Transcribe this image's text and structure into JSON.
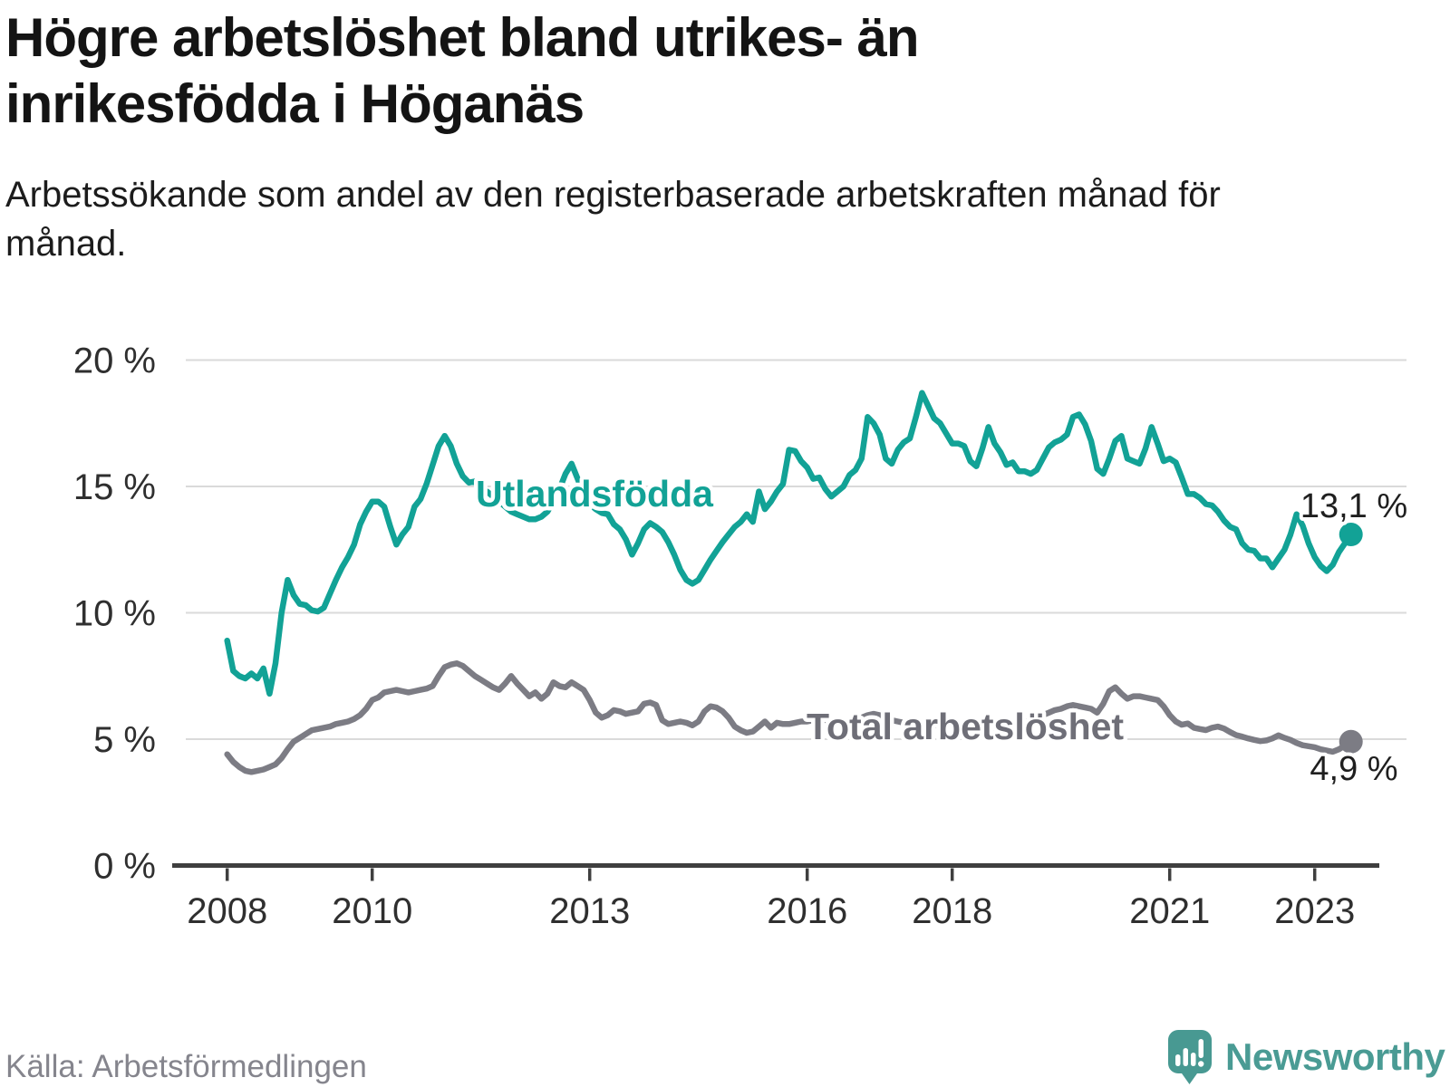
{
  "header": {
    "title": "Högre arbetslöshet bland utrikes- än inrikesfödda i Höganäs",
    "subtitle": "Arbetssökande som andel av den registerbaserade arbetskraften månad för månad."
  },
  "footer": {
    "source": "Källa: Arbetsförmedlingen",
    "brand": "Newsworthy",
    "brand_color": "#4a9b94",
    "logo_color": "#489992"
  },
  "chart_data": {
    "type": "line",
    "title": "",
    "xlabel": "",
    "ylabel": "",
    "x_unit": "month",
    "x_range": [
      "2008-01",
      "2023-07"
    ],
    "x_tick_years": [
      2008,
      2010,
      2013,
      2016,
      2018,
      2021,
      2023
    ],
    "y_tick_labels": [
      "0 %",
      "5 %",
      "10 %",
      "15 %",
      "20 %"
    ],
    "y_tick_values": [
      0,
      5,
      10,
      15,
      20
    ],
    "ylim": [
      0,
      20
    ],
    "grid": "horizontal",
    "legend_position": "inline-labels",
    "axis_color": "#3f3f3f",
    "grid_color": "#dadada",
    "tick_label_color": "#2f2f2f",
    "value_label_color": "#1f1f1f",
    "series": [
      {
        "name": "Utlandsfödda",
        "color": "#12a296",
        "end_label": "13,1 %",
        "end_value": 13.1,
        "values": [
          8.9,
          7.7,
          7.5,
          7.4,
          7.6,
          7.4,
          7.8,
          6.8,
          8.0,
          10.0,
          11.3,
          10.7,
          10.35,
          10.3,
          10.1,
          10.05,
          10.2,
          10.75,
          11.3,
          11.8,
          12.2,
          12.7,
          13.5,
          14.0,
          14.4,
          14.4,
          14.2,
          13.4,
          12.7,
          13.1,
          13.4,
          14.2,
          14.5,
          15.1,
          15.85,
          16.6,
          17.0,
          16.6,
          15.9,
          15.4,
          15.15,
          15.2,
          14.8,
          14.8,
          14.6,
          14.4,
          14.2,
          14.0,
          13.9,
          13.8,
          13.7,
          13.7,
          13.8,
          14.0,
          14.4,
          14.9,
          15.5,
          15.9,
          15.3,
          14.7,
          14.3,
          14.1,
          13.95,
          13.9,
          13.5,
          13.3,
          12.9,
          12.3,
          12.75,
          13.3,
          13.55,
          13.4,
          13.2,
          12.8,
          12.3,
          11.7,
          11.3,
          11.15,
          11.3,
          11.7,
          12.1,
          12.45,
          12.8,
          13.1,
          13.4,
          13.6,
          13.9,
          13.6,
          14.8,
          14.1,
          14.4,
          14.8,
          15.1,
          16.45,
          16.4,
          16.0,
          15.75,
          15.3,
          15.35,
          14.9,
          14.6,
          14.8,
          15.0,
          15.45,
          15.65,
          16.1,
          17.75,
          17.5,
          17.05,
          16.1,
          15.9,
          16.45,
          16.75,
          16.9,
          17.75,
          18.7,
          18.2,
          17.7,
          17.5,
          17.1,
          16.7,
          16.7,
          16.6,
          16.0,
          15.8,
          16.5,
          17.35,
          16.7,
          16.35,
          15.85,
          15.95,
          15.6,
          15.6,
          15.5,
          15.65,
          16.1,
          16.55,
          16.75,
          16.85,
          17.05,
          17.75,
          17.85,
          17.45,
          16.8,
          15.7,
          15.5,
          16.1,
          16.8,
          17.0,
          16.1,
          16.0,
          15.9,
          16.5,
          17.35,
          16.7,
          16.0,
          16.1,
          15.95,
          15.35,
          14.7,
          14.7,
          14.55,
          14.3,
          14.25,
          14.0,
          13.65,
          13.4,
          13.3,
          12.75,
          12.5,
          12.45,
          12.15,
          12.15,
          11.8,
          12.15,
          12.5,
          13.1,
          13.9,
          13.45,
          12.75,
          12.2,
          11.85,
          11.65,
          11.9,
          12.4,
          12.75,
          13.1
        ]
      },
      {
        "name": "Total arbetslöshet",
        "color": "#7c7c84",
        "end_label": "4,9 %",
        "end_value": 4.9,
        "values": [
          4.4,
          4.1,
          3.9,
          3.75,
          3.7,
          3.75,
          3.8,
          3.9,
          4.0,
          4.25,
          4.6,
          4.9,
          5.05,
          5.2,
          5.35,
          5.4,
          5.45,
          5.5,
          5.6,
          5.65,
          5.7,
          5.8,
          5.95,
          6.2,
          6.55,
          6.65,
          6.85,
          6.9,
          6.95,
          6.9,
          6.85,
          6.9,
          6.95,
          7.0,
          7.1,
          7.5,
          7.85,
          7.95,
          8.0,
          7.9,
          7.7,
          7.5,
          7.35,
          7.2,
          7.05,
          6.95,
          7.2,
          7.5,
          7.2,
          6.95,
          6.7,
          6.85,
          6.6,
          6.8,
          7.25,
          7.1,
          7.05,
          7.25,
          7.1,
          6.95,
          6.55,
          6.05,
          5.85,
          5.95,
          6.15,
          6.1,
          6.0,
          6.05,
          6.1,
          6.4,
          6.45,
          6.35,
          5.75,
          5.6,
          5.65,
          5.7,
          5.65,
          5.55,
          5.7,
          6.1,
          6.3,
          6.25,
          6.1,
          5.85,
          5.5,
          5.35,
          5.25,
          5.3,
          5.5,
          5.7,
          5.45,
          5.65,
          5.6,
          5.6,
          5.65,
          5.7,
          5.7,
          5.75,
          5.8,
          5.75,
          5.7,
          5.65,
          5.7,
          5.75,
          5.8,
          5.85,
          5.95,
          6.0,
          5.95,
          5.85,
          5.75,
          5.7,
          5.65,
          5.6,
          5.55,
          5.5,
          5.5,
          5.55,
          5.6,
          5.55,
          5.5,
          5.45,
          5.4,
          5.35,
          5.3,
          5.35,
          5.4,
          5.45,
          5.5,
          5.55,
          5.6,
          5.65,
          5.7,
          5.75,
          5.85,
          5.95,
          6.05,
          6.15,
          6.2,
          6.3,
          6.35,
          6.3,
          6.25,
          6.2,
          6.05,
          6.4,
          6.9,
          7.05,
          6.8,
          6.6,
          6.7,
          6.7,
          6.65,
          6.6,
          6.55,
          6.3,
          5.95,
          5.7,
          5.57,
          5.62,
          5.45,
          5.4,
          5.36,
          5.45,
          5.5,
          5.42,
          5.28,
          5.16,
          5.1,
          5.03,
          4.97,
          4.92,
          4.95,
          5.03,
          5.15,
          5.05,
          4.97,
          4.85,
          4.76,
          4.72,
          4.68,
          4.6,
          4.55,
          4.5,
          4.6,
          4.75,
          4.9
        ]
      }
    ]
  }
}
